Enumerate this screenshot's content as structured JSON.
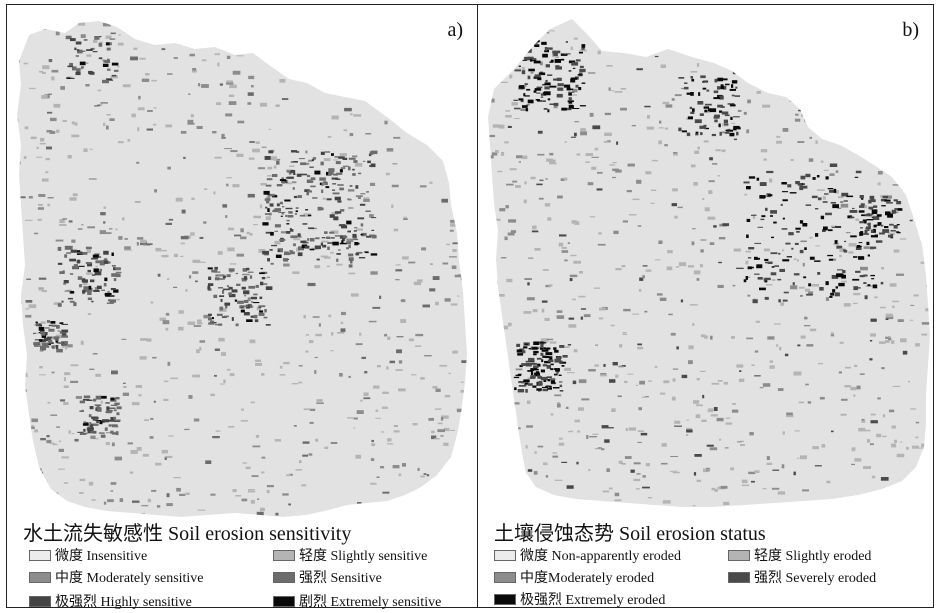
{
  "panels": [
    {
      "label": "a)",
      "legend_title": "水土流失敏感性 Soil erosion sensitivity",
      "legend": [
        {
          "label": "微度 Insensitive",
          "color": "#ececec"
        },
        {
          "label": "轻度 Slightly sensitive",
          "color": "#b4b4b4"
        },
        {
          "label": "中度 Moderately sensitive",
          "color": "#8c8c8c"
        },
        {
          "label": "强烈 Sensitive",
          "color": "#6c6c6c"
        },
        {
          "label": "极强烈 Highly sensitive",
          "color": "#444444"
        },
        {
          "label": "剧烈 Extremely sensitive",
          "color": "#0a0a0a"
        }
      ]
    },
    {
      "label": "b)",
      "legend_title": "土壤侵蚀态势 Soil erosion status",
      "legend": [
        {
          "label": "微度 Non-apparently eroded",
          "color": "#ececec"
        },
        {
          "label": "轻度 Slightly eroded",
          "color": "#b4b4b4"
        },
        {
          "label": "中度Moderately eroded",
          "color": "#8c8c8c"
        },
        {
          "label": "强烈 Severely eroded",
          "color": "#4a4a4a"
        },
        {
          "label": "极强烈 Extremely eroded",
          "color": "#0a0a0a"
        }
      ]
    }
  ]
}
